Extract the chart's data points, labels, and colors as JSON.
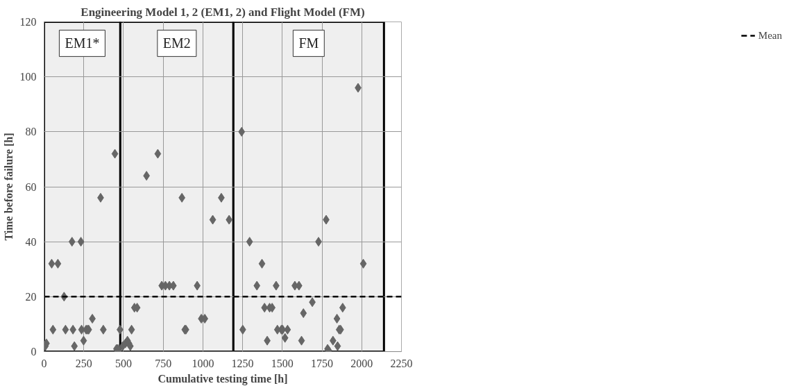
{
  "chart_data": {
    "type": "scatter",
    "title": "Engineering Model 1, 2 (EM1, 2) and Flight Model (FM)",
    "xlabel": "Cumulative testing time [h]",
    "ylabel": "Time before failure [h]",
    "series": [
      {
        "color": "#666666",
        "x": [
          8,
          15,
          48,
          87,
          56,
          126,
          135,
          176,
          182,
          191,
          232,
          236,
          249,
          265,
          274,
          281,
          304,
          356,
          373,
          446,
          456,
          465,
          469,
          478,
          495,
          512,
          525,
          534,
          543,
          551,
          569,
          586,
          645,
          716,
          741,
          764,
          789,
          814,
          868,
          886,
          893,
          964,
          990,
          1012,
          1062,
          1116,
          1165,
          1244,
          1251,
          1294,
          1340,
          1372,
          1388,
          1405,
          1420,
          1436,
          1461,
          1469,
          1494,
          1502,
          1517,
          1533,
          1579,
          1605,
          1621,
          1633,
          1689,
          1728,
          1776,
          1785,
          1791,
          1819,
          1844,
          1848,
          1858,
          1867,
          1880,
          1977,
          2010
        ],
        "values": [
          2,
          3,
          32,
          32,
          8,
          20,
          8,
          40,
          8,
          2,
          40,
          8,
          4,
          8,
          8,
          8,
          12,
          56,
          8,
          72,
          1,
          1,
          0.5,
          8,
          2,
          3,
          4,
          3,
          2,
          8,
          16,
          16,
          64,
          72,
          24,
          24,
          24,
          24,
          56,
          8,
          8,
          24,
          12,
          12,
          48,
          56,
          48,
          80,
          8,
          40,
          24,
          32,
          16,
          4,
          16,
          16,
          24,
          8,
          8,
          8,
          5,
          8,
          24,
          24,
          4,
          14,
          18,
          40,
          48,
          1,
          0.5,
          4,
          12,
          2,
          8,
          8,
          16,
          96,
          32
        ]
      }
    ],
    "marker": "diamond",
    "xlim": [
      0,
      2250
    ],
    "xticks": [
      0,
      250,
      500,
      750,
      1000,
      1250,
      1500,
      1750,
      2000,
      2250
    ],
    "ylim": [
      0,
      120
    ],
    "yticks": [
      0,
      20,
      40,
      60,
      80,
      100,
      120
    ],
    "grid": true,
    "legend": "right",
    "ref_lines": [
      {
        "axis": "y",
        "value": 20,
        "label": "Mean",
        "color": "#000000",
        "line_style": "dashed"
      }
    ],
    "bands": [
      {
        "axis": "x",
        "from": 0,
        "to": 480,
        "label": "EM1*",
        "color": "#efefef"
      },
      {
        "axis": "x",
        "from": 480,
        "to": 1192,
        "label": "EM2",
        "color": "#efefef"
      },
      {
        "axis": "x",
        "from": 1192,
        "to": 2140,
        "label": "FM",
        "color": "#efefef"
      }
    ]
  }
}
